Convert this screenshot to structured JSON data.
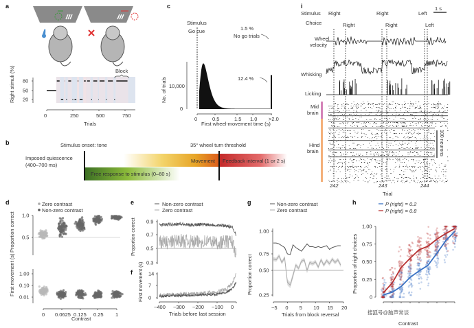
{
  "panels": {
    "a": {
      "label": "a",
      "ylabel": "Right stimuli (%)",
      "xlabel": "Trials",
      "yticks": [
        "80",
        "50",
        "20"
      ],
      "xticks": [
        "0",
        "250",
        "500",
        "750"
      ],
      "block_label": "Block"
    },
    "b": {
      "label": "b",
      "stim_onset": "Stimulus onset: tone",
      "threshold": "35° wheel turn threshold",
      "quiescence": "Imposed quiescence",
      "quiescence_range": "(400–700 ms)",
      "movement": "Movement",
      "feedback": "Feedback interval (1 or 2 s)",
      "free_response": "Free response to stimulus (0–60 s)"
    },
    "c": {
      "label": "c",
      "stimulus": "Stimulus",
      "go_cue": "Go cue",
      "nogo_pct": "1.5 %",
      "nogo": "No go trials",
      "late_pct": "12.4 %"
    },
    "d": {
      "label": "d",
      "legend": [
        "Zero contrast",
        "Non-zero contrast"
      ],
      "ylabel_top": "Proportion correct",
      "ylabel_bottom": "First movement (s)",
      "yticks_top": [
        "1.0",
        "0.5"
      ],
      "yticks_bottom": [
        "1.00",
        "0.10",
        "0.01"
      ],
      "xticks": [
        "0",
        "0.0625",
        "0.125",
        "0.25",
        "1"
      ],
      "xlabel": "Contrast"
    },
    "e": {
      "label": "e",
      "legend": [
        "Non-zero contrast",
        "Zero contrast"
      ],
      "ylabel": "Proportion correct",
      "yticks": [
        "0.9",
        "0.7",
        "0.5",
        "0.3"
      ]
    },
    "f": {
      "label": "f",
      "ylabel": "First movement (s)",
      "yticks": [
        "14",
        "7",
        "0"
      ],
      "xticks": [
        "−400",
        "−300",
        "−200",
        "−100",
        "0"
      ],
      "xlabel": "Trials before last session"
    },
    "g": {
      "label": "g",
      "legend": [
        "Non-zero contrast",
        "Zero contrast"
      ],
      "ylabel": "Proportion correct",
      "yticks": [
        "1.00",
        "0.75",
        "0.50",
        "0.25"
      ],
      "xticks": [
        "−5",
        "0",
        "5",
        "10",
        "15",
        "20"
      ],
      "xlabel": "Trials from block reversal"
    },
    "h": {
      "label": "h",
      "legend": [
        "P (right) = 0.2",
        "P (right) = 0.8"
      ],
      "ylabel": "Proportion of right choices",
      "yticks": [
        "1.00",
        "0.75",
        "0.50",
        "0.25",
        "0"
      ],
      "xlabel": "Contrast",
      "colors": [
        "#3a72c4",
        "#b83232"
      ]
    },
    "i": {
      "label": "i",
      "stimulus": "Stimulus",
      "choice": "Choice",
      "stim_values": [
        "Right",
        "Right",
        "Left"
      ],
      "choice_values": [
        "Right",
        "Right",
        "Left"
      ],
      "scale": "1 s",
      "wheel": [
        "Wheel",
        "velocity"
      ],
      "whisking": "Whisking",
      "licking": "Licking",
      "mid": [
        "Mid",
        "brain"
      ],
      "hind": [
        "Hind",
        "brain"
      ],
      "neurons": "100 neurons",
      "trials": [
        "242",
        "243",
        "244"
      ],
      "xlabel": "Trial"
    }
  },
  "watermark": "搜狐号@脑声常谈",
  "chart_data": [
    {
      "panel": "c",
      "type": "bar",
      "xlabel": "First wheel-movement time (s)",
      "ylabel": "No. of trials",
      "xtick_labels": [
        "0",
        "0.5",
        "1.5",
        "1.0",
        ">2.0"
      ],
      "x": [
        0.05,
        0.1,
        0.15,
        0.2,
        0.25,
        0.3,
        0.4,
        0.5,
        0.75,
        1.0,
        1.5,
        2.0
      ],
      "values": [
        5000,
        18000,
        19500,
        13000,
        7000,
        3500,
        1800,
        900,
        500,
        300,
        200,
        14000
      ]
    },
    {
      "panel": "e",
      "type": "line",
      "series": [
        {
          "name": "Non-zero contrast",
          "x": [
            -400,
            -350,
            -300,
            -250,
            -200,
            -150,
            -100,
            -50,
            -20,
            0
          ],
          "values": [
            0.84,
            0.85,
            0.86,
            0.84,
            0.85,
            0.85,
            0.84,
            0.83,
            0.8,
            0.7
          ]
        },
        {
          "name": "Zero contrast",
          "x": [
            -400,
            -350,
            -300,
            -250,
            -200,
            -150,
            -100,
            -50,
            -20,
            0
          ],
          "values": [
            0.6,
            0.58,
            0.62,
            0.6,
            0.59,
            0.61,
            0.58,
            0.6,
            0.6,
            0.4
          ]
        }
      ]
    },
    {
      "panel": "f",
      "type": "line",
      "series": [
        {
          "x": [
            -400,
            -300,
            -200,
            -100,
            -50,
            -20,
            0
          ],
          "values": [
            0.5,
            1,
            1.2,
            1.8,
            3,
            5,
            9
          ]
        }
      ]
    },
    {
      "panel": "g",
      "type": "line",
      "x": [
        -5,
        -4,
        -3,
        -2,
        -1,
        0,
        1,
        2,
        3,
        4,
        5,
        6,
        7,
        8,
        9,
        10,
        11,
        12,
        13,
        14,
        15,
        16,
        17,
        18,
        19
      ],
      "series": [
        {
          "name": "Non-zero contrast",
          "values": [
            0.87,
            0.87,
            0.86,
            0.84,
            0.82,
            0.75,
            0.74,
            0.85,
            0.82,
            0.8,
            0.78,
            0.82,
            0.86,
            0.83,
            0.83,
            0.82,
            0.83,
            0.82,
            0.83,
            0.84,
            0.8,
            0.82,
            0.83,
            0.84,
            0.84
          ]
        },
        {
          "name": "Zero contrast",
          "values": [
            0.67,
            0.66,
            0.72,
            0.62,
            0.69,
            0.38,
            0.35,
            0.45,
            0.58,
            0.53,
            0.64,
            0.66,
            0.5,
            0.62,
            0.6,
            0.63,
            0.55,
            0.66,
            0.58,
            0.65,
            0.6,
            0.67,
            0.62,
            0.66,
            0.58
          ]
        }
      ]
    },
    {
      "panel": "h",
      "type": "line",
      "x": [
        -1,
        -0.25,
        -0.125,
        -0.0625,
        0,
        0.0625,
        0.125,
        0.25,
        1
      ],
      "series": [
        {
          "name": "P (right) = 0.2",
          "values": [
            0.03,
            0.07,
            0.15,
            0.28,
            0.37,
            0.45,
            0.62,
            0.8,
            0.93
          ]
        },
        {
          "name": "P (right) = 0.8",
          "values": [
            0.06,
            0.2,
            0.42,
            0.55,
            0.67,
            0.72,
            0.82,
            0.9,
            0.97
          ]
        }
      ],
      "ylim": [
        0,
        1
      ]
    }
  ]
}
